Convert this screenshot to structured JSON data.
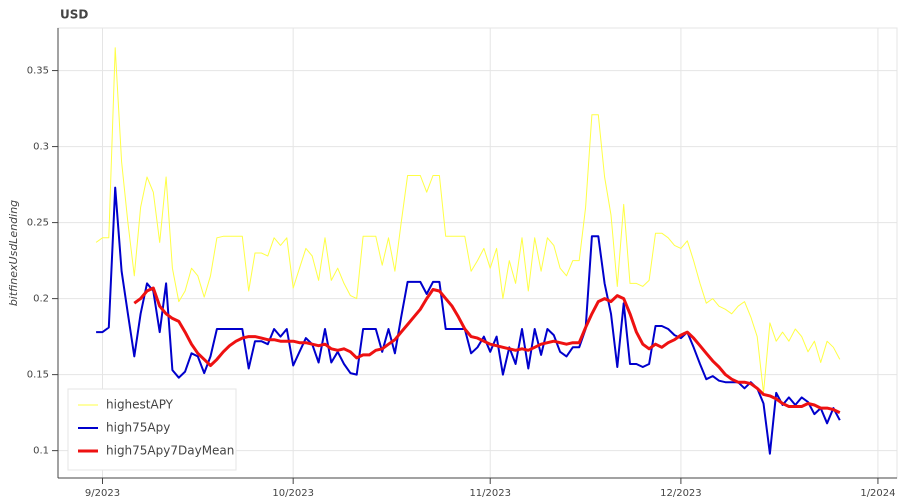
{
  "chart_data": {
    "type": "line",
    "title": "USD",
    "y_label": "bitfinexUsdLending",
    "x": [
      -1,
      0,
      1,
      2,
      3,
      4,
      5,
      6,
      7,
      8,
      9,
      10,
      11,
      12,
      13,
      14,
      15,
      16,
      17,
      18,
      19,
      20,
      21,
      22,
      23,
      24,
      25,
      26,
      27,
      28,
      29,
      30,
      31,
      32,
      33,
      34,
      35,
      36,
      37,
      38,
      39,
      40,
      41,
      42,
      43,
      44,
      45,
      46,
      47,
      48,
      49,
      50,
      51,
      52,
      53,
      54,
      55,
      56,
      57,
      58,
      59,
      60,
      61,
      62,
      63,
      64,
      65,
      66,
      67,
      68,
      69,
      70,
      71,
      72,
      73,
      74,
      75,
      76,
      77,
      78,
      79,
      80,
      81,
      82,
      83,
      84,
      85,
      86,
      87,
      88,
      89,
      90,
      91,
      92,
      93,
      94,
      95,
      96,
      97,
      98,
      99,
      100,
      101,
      102,
      103,
      104,
      105,
      106,
      107,
      108,
      109,
      110,
      111,
      112,
      113,
      114,
      115,
      116
    ],
    "series": [
      {
        "name": "highestAPY",
        "color": "#ffff44",
        "width": 1,
        "values": [
          0.237,
          0.24,
          0.24,
          0.365,
          0.29,
          0.25,
          0.215,
          0.26,
          0.28,
          0.27,
          0.237,
          0.28,
          0.22,
          0.198,
          0.205,
          0.22,
          0.215,
          0.201,
          0.215,
          0.24,
          0.241,
          0.241,
          0.241,
          0.241,
          0.205,
          0.23,
          0.23,
          0.228,
          0.24,
          0.235,
          0.24,
          0.207,
          0.22,
          0.233,
          0.228,
          0.212,
          0.24,
          0.212,
          0.22,
          0.21,
          0.202,
          0.2,
          0.241,
          0.241,
          0.241,
          0.222,
          0.24,
          0.218,
          0.25,
          0.281,
          0.281,
          0.281,
          0.27,
          0.281,
          0.281,
          0.241,
          0.241,
          0.241,
          0.241,
          0.218,
          0.225,
          0.233,
          0.22,
          0.233,
          0.2,
          0.225,
          0.21,
          0.24,
          0.205,
          0.24,
          0.218,
          0.24,
          0.235,
          0.22,
          0.215,
          0.225,
          0.225,
          0.26,
          0.321,
          0.321,
          0.28,
          0.255,
          0.208,
          0.262,
          0.21,
          0.21,
          0.208,
          0.212,
          0.243,
          0.243,
          0.24,
          0.235,
          0.233,
          0.238,
          0.225,
          0.21,
          0.197,
          0.2,
          0.195,
          0.193,
          0.19,
          0.195,
          0.198,
          0.188,
          0.175,
          0.138,
          0.184,
          0.172,
          0.178,
          0.172,
          0.18,
          0.175,
          0.165,
          0.172,
          0.158,
          0.172,
          0.168,
          0.16
        ]
      },
      {
        "name": "high75Apy",
        "color": "#0000cc",
        "width": 2,
        "values": [
          0.178,
          0.178,
          0.181,
          0.273,
          0.218,
          0.19,
          0.162,
          0.19,
          0.21,
          0.205,
          0.178,
          0.21,
          0.153,
          0.148,
          0.152,
          0.164,
          0.162,
          0.151,
          0.162,
          0.18,
          0.18,
          0.18,
          0.18,
          0.18,
          0.154,
          0.172,
          0.172,
          0.17,
          0.18,
          0.175,
          0.18,
          0.156,
          0.165,
          0.174,
          0.17,
          0.158,
          0.18,
          0.158,
          0.165,
          0.157,
          0.151,
          0.15,
          0.18,
          0.18,
          0.18,
          0.165,
          0.18,
          0.164,
          0.188,
          0.211,
          0.211,
          0.211,
          0.203,
          0.211,
          0.211,
          0.18,
          0.18,
          0.18,
          0.18,
          0.164,
          0.168,
          0.175,
          0.165,
          0.175,
          0.15,
          0.168,
          0.157,
          0.18,
          0.154,
          0.18,
          0.163,
          0.18,
          0.176,
          0.165,
          0.162,
          0.168,
          0.168,
          0.18,
          0.241,
          0.241,
          0.21,
          0.19,
          0.155,
          0.197,
          0.157,
          0.157,
          0.155,
          0.157,
          0.182,
          0.182,
          0.18,
          0.176,
          0.174,
          0.178,
          0.168,
          0.157,
          0.147,
          0.149,
          0.146,
          0.145,
          0.145,
          0.145,
          0.141,
          0.145,
          0.141,
          0.131,
          0.098,
          0.138,
          0.13,
          0.135,
          0.13,
          0.135,
          0.132,
          0.124,
          0.128,
          0.118,
          0.128,
          0.12
        ]
      },
      {
        "name": "high75Apy7DayMean",
        "color": "#ee1111",
        "width": 3,
        "values": [
          null,
          null,
          null,
          null,
          null,
          null,
          0.197,
          0.2,
          0.205,
          0.207,
          0.195,
          0.19,
          0.187,
          0.185,
          0.178,
          0.17,
          0.164,
          0.16,
          0.156,
          0.16,
          0.165,
          0.169,
          0.172,
          0.174,
          0.175,
          0.175,
          0.174,
          0.173,
          0.173,
          0.172,
          0.172,
          0.172,
          0.171,
          0.171,
          0.17,
          0.169,
          0.17,
          0.167,
          0.166,
          0.167,
          0.165,
          0.161,
          0.163,
          0.163,
          0.166,
          0.167,
          0.17,
          0.173,
          0.178,
          0.183,
          0.188,
          0.193,
          0.2,
          0.206,
          0.205,
          0.2,
          0.195,
          0.188,
          0.18,
          0.175,
          0.174,
          0.172,
          0.17,
          0.169,
          0.168,
          0.167,
          0.166,
          0.167,
          0.166,
          0.168,
          0.17,
          0.171,
          0.172,
          0.171,
          0.17,
          0.171,
          0.171,
          0.181,
          0.19,
          0.198,
          0.2,
          0.198,
          0.202,
          0.2,
          0.19,
          0.178,
          0.17,
          0.167,
          0.17,
          0.168,
          0.171,
          0.173,
          0.176,
          0.178,
          0.174,
          0.169,
          0.164,
          0.159,
          0.155,
          0.15,
          0.147,
          0.145,
          0.145,
          0.144,
          0.141,
          0.137,
          0.136,
          0.134,
          0.131,
          0.129,
          0.129,
          0.129,
          0.131,
          0.13,
          0.128,
          0.128,
          0.127,
          0.125
        ]
      }
    ],
    "xlim": [
      -7,
      125
    ],
    "ylim": [
      0.082,
      0.378
    ],
    "xticks": [
      {
        "value": 0,
        "label": "9/2023"
      },
      {
        "value": 30,
        "label": "10/2023"
      },
      {
        "value": 61,
        "label": "11/2023"
      },
      {
        "value": 91,
        "label": "12/2023"
      },
      {
        "value": 122,
        "label": "1/2024"
      }
    ],
    "yticks": [
      {
        "value": 0.1,
        "label": "0.1"
      },
      0.15,
      0.2,
      0.25,
      {
        "value": 0.3,
        "label": "0.3"
      },
      0.35
    ],
    "grid": true,
    "legend": "bottom-left"
  }
}
